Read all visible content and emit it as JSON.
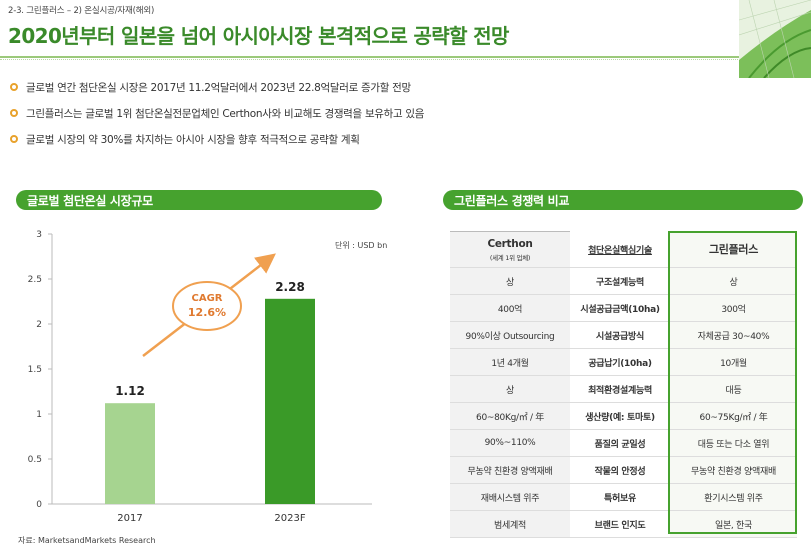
{
  "header": {
    "breadcrumb": "2-3. 그린플러스 – 2) 온실시공/자재(해외)",
    "title": "2020년부터 일본을 넘어 아시아시장 본격적으로 공략할 전망"
  },
  "bullets": [
    "글로벌 연간 첨단온실 시장은 2017년 11.2억달러에서 2023년 22.8억달러로 증가할 전망",
    "그린플러스는 글로벌 1위 첨단온실전문업체인 Certhon사와 비교해도 경쟁력을 보유하고 있음",
    "글로벌 시장의 약 30%를 차지하는 아시아 시장을 향후 적극적으로 공략할 계획"
  ],
  "chart_section": {
    "title": "글로벌 첨단온실 시장규모",
    "unit": "단위 : USD bn",
    "source": "자료: MarketsandMarkets Research",
    "cagr_label": "CAGR",
    "cagr_value": "12.6%"
  },
  "chart_data": {
    "type": "bar",
    "categories": [
      "2017",
      "2023F"
    ],
    "values": [
      1.12,
      2.28
    ],
    "value_labels": [
      "1.12",
      "2.28"
    ],
    "ylim": [
      0,
      3
    ],
    "yticks": [
      "0",
      "0.5",
      "1",
      "1.5",
      "2",
      "2.5",
      "3"
    ],
    "colors": [
      "#a6d490",
      "#3a9a28"
    ],
    "grid": false
  },
  "compare_section": {
    "title": "그린플러스 경쟁력 비교",
    "header": {
      "left_main": "Certhon",
      "left_sub": "(세계 1위 업체)",
      "mid": "첨단온실핵심기술",
      "right": "그린플러스"
    },
    "rows": [
      {
        "left": "상",
        "mid": "구조설계능력",
        "right": "상"
      },
      {
        "left": "400억",
        "mid": "시설공급금액(10ha)",
        "right": "300억"
      },
      {
        "left": "90%이상 Outsourcing",
        "mid": "시설공급방식",
        "right": "자체공급 30~40%"
      },
      {
        "left": "1년 4개월",
        "mid": "공급납기(10ha)",
        "right": "10개월"
      },
      {
        "left": "상",
        "mid": "최적환경설계능력",
        "right": "대등"
      },
      {
        "left": "60~80Kg/㎡ / 年",
        "mid": "생산량(예: 토마토)",
        "right": "60~75Kg/㎡ / 年"
      },
      {
        "left": "90%~110%",
        "mid": "품질의 균일성",
        "right": "대등 또는 다소 열위"
      },
      {
        "left": "무농약 친환경 양액재배",
        "mid": "작물의 안정성",
        "right": "무농약 친환경 양액재배"
      },
      {
        "left": "재배시스템 위주",
        "mid": "특허보유",
        "right": "환기시스템 위주"
      },
      {
        "left": "범세계적",
        "mid": "브랜드 인지도",
        "right": "일본, 한국"
      }
    ]
  },
  "colors": {
    "accent_green": "#46a22e",
    "title_green": "#3a8a2a",
    "bullet_orange": "#e8a22c",
    "arrow_orange": "#f0a050"
  }
}
